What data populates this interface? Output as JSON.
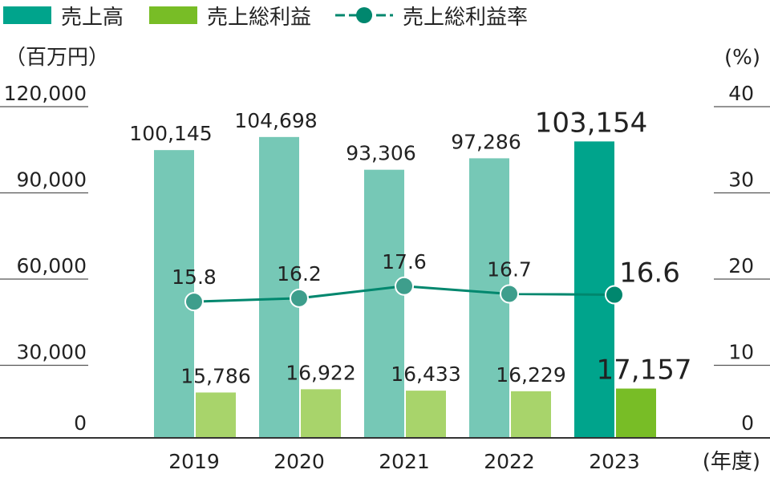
{
  "chart_data": {
    "type": "bar",
    "categories": [
      "2019",
      "2020",
      "2021",
      "2022",
      "2023"
    ],
    "series": [
      {
        "name": "売上高",
        "values": [
          100145,
          104698,
          93306,
          97286,
          103154
        ],
        "labels": [
          "100,145",
          "104,698",
          "93,306",
          "97,286",
          "103,154"
        ],
        "color": "#76c8b6",
        "highlight_color": "#00a48c"
      },
      {
        "name": "売上総利益",
        "values": [
          15786,
          16922,
          16433,
          16229,
          17157
        ],
        "labels": [
          "15,786",
          "16,922",
          "16,433",
          "16,229",
          "17,157"
        ],
        "color": "#a8d46b",
        "highlight_color": "#78bd26"
      },
      {
        "name": "売上総利益率",
        "values": [
          15.8,
          16.2,
          17.6,
          16.7,
          16.6
        ],
        "labels": [
          "15.8",
          "16.2",
          "17.6",
          "16.7",
          "16.6"
        ],
        "color": "#00876e",
        "marker_color": "#3e9e8c",
        "type": "line"
      }
    ],
    "highlight_index": 4,
    "y_left": {
      "label": "（百万円）",
      "ticks": [
        "0",
        "30,000",
        "60,000",
        "90,000",
        "120,000"
      ],
      "ylim": [
        0,
        120000
      ]
    },
    "y_right": {
      "label": "(%)",
      "ticks": [
        "0",
        "10",
        "20",
        "30",
        "40"
      ],
      "ylim": [
        0,
        40
      ]
    },
    "x_label": "(年度)",
    "legend_position": "top-left"
  }
}
